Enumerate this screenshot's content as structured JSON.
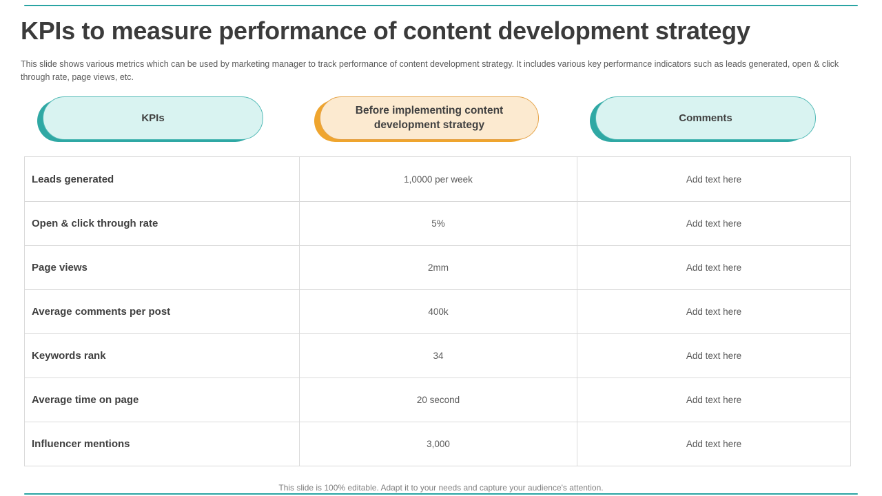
{
  "slide": {
    "title": "KPIs to measure performance of content development strategy",
    "description": "This slide shows various metrics which can be used by marketing manager to track performance of content development strategy. It includes various key performance indicators such as leads generated, open & click through rate, page views, etc.",
    "footer": "This slide is 100% editable. Adapt it to your needs and capture your audience's attention."
  },
  "columns": [
    {
      "label": "KPIs",
      "theme": "teal"
    },
    {
      "label": "Before implementing content development strategy",
      "theme": "orange"
    },
    {
      "label": "Comments",
      "theme": "teal"
    }
  ],
  "table": {
    "rows": [
      {
        "kpi": "Leads generated",
        "value": "1,0000 per week",
        "comment": "Add text here"
      },
      {
        "kpi": "Open & click through rate",
        "value": "5%",
        "comment": "Add text here"
      },
      {
        "kpi": "Page views",
        "value": "2mm",
        "comment": "Add text here"
      },
      {
        "kpi": "Average comments per post",
        "value": "400k",
        "comment": "Add text here"
      },
      {
        "kpi": "Keywords rank",
        "value": "34",
        "comment": "Add text here"
      },
      {
        "kpi": "Average time on page",
        "value": "20 second",
        "comment": "Add text here"
      },
      {
        "kpi": "Influencer mentions",
        "value": "3,000",
        "comment": "Add text here"
      }
    ]
  },
  "colors": {
    "accent": "#2aa4a3",
    "teal_fill": "#d9f3f1",
    "teal_border": "#52bab6",
    "teal_shadow": "#2fa8a4",
    "orange_fill": "#fcead0",
    "orange_border": "#e5a348",
    "orange_shadow": "#efa52e",
    "grid_line": "#d9d9d9",
    "title_text": "#3b3b3b",
    "body_text": "#595959"
  }
}
